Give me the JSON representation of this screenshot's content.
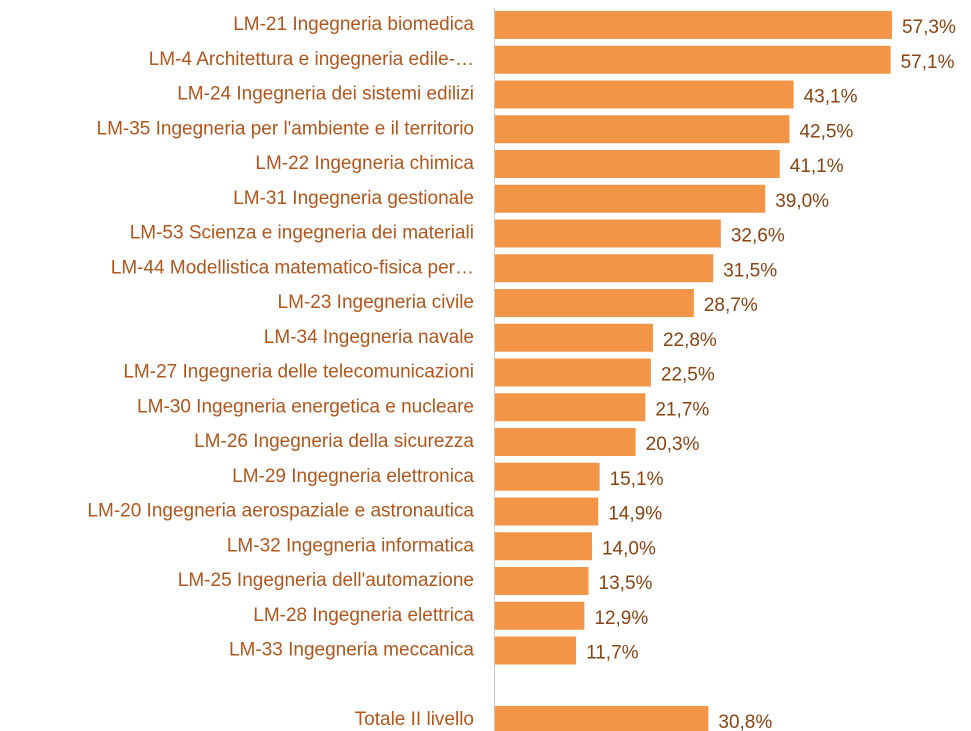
{
  "chart_data": {
    "type": "barh",
    "categories": [
      "LM-21 Ingegneria biomedica",
      "LM-4 Architettura e ingegneria edile-…",
      "LM-24 Ingegneria dei sistemi edilizi",
      "LM-35 Ingegneria per l'ambiente e il territorio",
      "LM-22 Ingegneria chimica",
      "LM-31 Ingegneria gestionale",
      "LM-53 Scienza e ingegneria dei materiali",
      "LM-44 Modellistica matematico-fisica per…",
      "LM-23 Ingegneria civile",
      "LM-34 Ingegneria navale",
      "LM-27 Ingegneria delle telecomunicazioni",
      "LM-30 Ingegneria energetica e nucleare",
      "LM-26 Ingegneria della sicurezza",
      "LM-29 Ingegneria elettronica",
      "LM-20 Ingegneria aerospaziale e astronautica",
      "LM-32 Ingegneria informatica",
      "LM-25 Ingegneria dell'automazione",
      "LM-28 Ingegneria elettrica",
      "LM-33 Ingegneria meccanica",
      null,
      "Totale II livello"
    ],
    "values": [
      57.3,
      57.1,
      43.1,
      42.5,
      41.1,
      39.0,
      32.6,
      31.5,
      28.7,
      22.8,
      22.5,
      21.7,
      20.3,
      15.1,
      14.9,
      14.0,
      13.5,
      12.9,
      11.7,
      null,
      30.8
    ],
    "value_labels": [
      "57,3%",
      "57,1%",
      "43,1%",
      "42,5%",
      "41,1%",
      "39,0%",
      "32,6%",
      "31,5%",
      "28,7%",
      "22,8%",
      "22,5%",
      "21,7%",
      "20,3%",
      "15,1%",
      "14,9%",
      "14,0%",
      "13,5%",
      "12,9%",
      "11,7%",
      null,
      "30,8%"
    ],
    "color": "#f39547"
  }
}
